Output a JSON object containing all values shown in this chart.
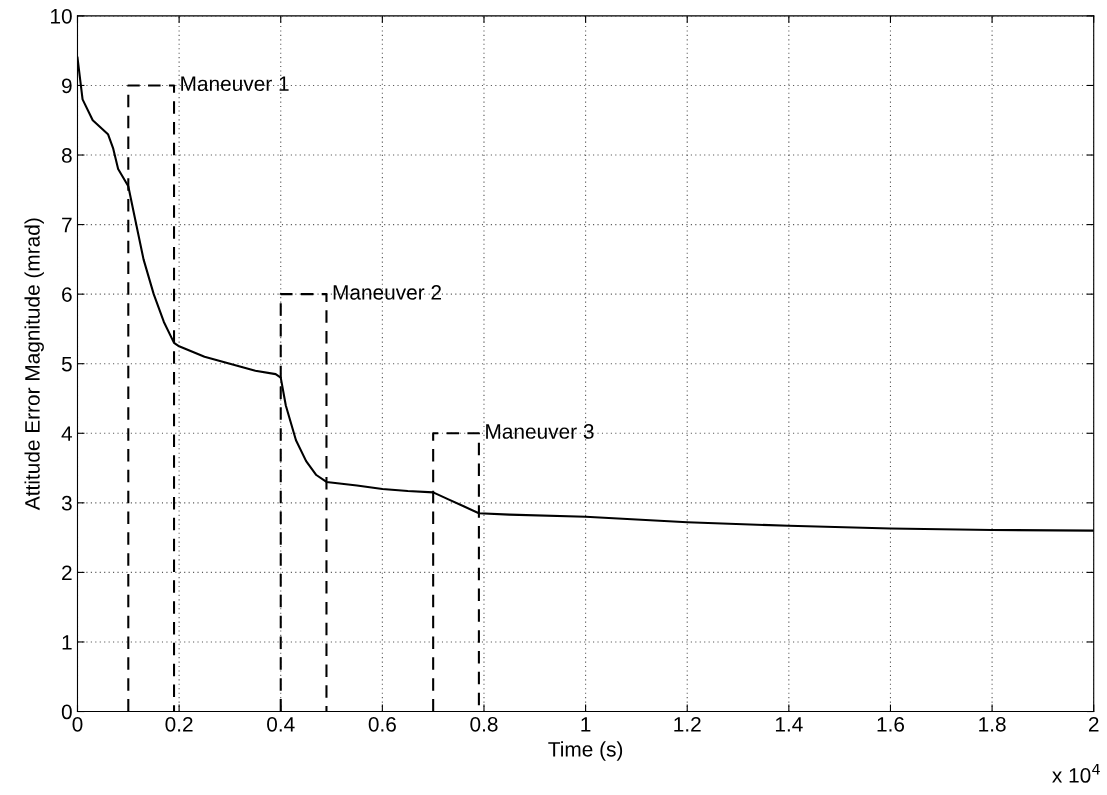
{
  "chart_data": {
    "type": "line",
    "xlabel": "Time (s)",
    "ylabel": "Attitude Error Magnitude (mrad)",
    "xlim": [
      0,
      2
    ],
    "ylim": [
      0,
      10
    ],
    "xticks": [
      0,
      0.2,
      0.4,
      0.6,
      0.8,
      1,
      1.2,
      1.4,
      1.6,
      1.8,
      2
    ],
    "yticks": [
      0,
      1,
      2,
      3,
      4,
      5,
      6,
      7,
      8,
      9,
      10
    ],
    "grid": true,
    "marker": "none",
    "series": [
      {
        "color": "#000000",
        "line_style": "solid",
        "x": [
          0,
          0.01,
          0.03,
          0.06,
          0.07,
          0.08,
          0.1,
          0.11,
          0.13,
          0.15,
          0.17,
          0.19,
          0.2,
          0.25,
          0.3,
          0.35,
          0.39,
          0.4,
          0.41,
          0.43,
          0.45,
          0.47,
          0.49,
          0.55,
          0.6,
          0.65,
          0.7,
          0.73,
          0.76,
          0.79,
          0.85,
          1.0,
          1.2,
          1.4,
          1.6,
          1.8,
          2.0
        ],
        "values": [
          9.4,
          8.8,
          8.5,
          8.3,
          8.1,
          7.8,
          7.55,
          7.2,
          6.5,
          6.0,
          5.6,
          5.3,
          5.25,
          5.1,
          5.0,
          4.9,
          4.85,
          4.8,
          4.4,
          3.9,
          3.6,
          3.4,
          3.3,
          3.25,
          3.2,
          3.17,
          3.15,
          3.05,
          2.95,
          2.85,
          2.83,
          2.8,
          2.72,
          2.67,
          2.63,
          2.61,
          2.6
        ]
      },
      {
        "color": "#000000",
        "line_style": "dashed",
        "x": [
          0.1,
          0.1,
          0.19,
          0.19
        ],
        "values": [
          0,
          9,
          9,
          0
        ]
      },
      {
        "color": "#000000",
        "line_style": "dashed",
        "x": [
          0.4,
          0.4,
          0.49,
          0.49
        ],
        "values": [
          0,
          6,
          6,
          0
        ]
      },
      {
        "color": "#000000",
        "line_style": "dashed",
        "x": [
          0.7,
          0.7,
          0.79,
          0.79
        ],
        "values": [
          0,
          4,
          4,
          0
        ]
      }
    ],
    "annotations": [
      {
        "text": "Maneuver 1",
        "x": 0.19,
        "y": 9
      },
      {
        "text": "Maneuver 2",
        "x": 0.49,
        "y": 6
      },
      {
        "text": "Maneuver 3",
        "x": 0.79,
        "y": 4
      },
      "x 10$^{4}$"
    ]
  }
}
